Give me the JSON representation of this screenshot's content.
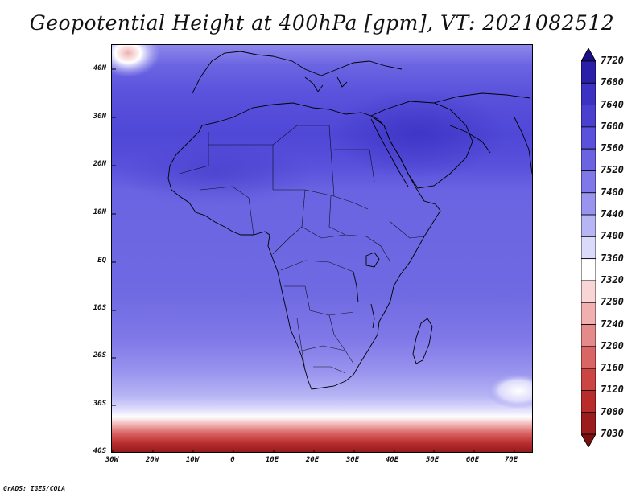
{
  "title": "Geopotential Height at 400hPa [gpm], VT: 2021082512",
  "credit": "GrADS: IGES/COLA",
  "lat_labels": [
    "40N",
    "30N",
    "20N",
    "10N",
    "EQ",
    "10S",
    "20S",
    "30S",
    "40S"
  ],
  "lon_labels": [
    "30W",
    "20W",
    "10W",
    "0",
    "10E",
    "20E",
    "30E",
    "40E",
    "50E",
    "60E",
    "70E"
  ],
  "colorbar": {
    "labels": [
      "7720",
      "7680",
      "7640",
      "7600",
      "7560",
      "7520",
      "7480",
      "7440",
      "7400",
      "7360",
      "7320",
      "7280",
      "7240",
      "7200",
      "7160",
      "7120",
      "7080",
      "7030"
    ],
    "colors": [
      "#1b0f86",
      "#2a1fa8",
      "#3b31c2",
      "#4a40d0",
      "#5a52dc",
      "#6b64e2",
      "#7f78e8",
      "#9994ee",
      "#b8b5f5",
      "#dcdafb",
      "#ffffff",
      "#f8d6d6",
      "#f0b0b0",
      "#e58a8a",
      "#d96565",
      "#cc4545",
      "#b82c2c",
      "#9b1c1c",
      "#7a1010"
    ]
  },
  "map": {
    "field": "Geopotential Height",
    "level": "400hPa",
    "units": "gpm",
    "valid_time": "2021082512",
    "lat_range": [
      "40S",
      "45N"
    ],
    "lon_range": [
      "30W",
      "75E"
    ]
  }
}
